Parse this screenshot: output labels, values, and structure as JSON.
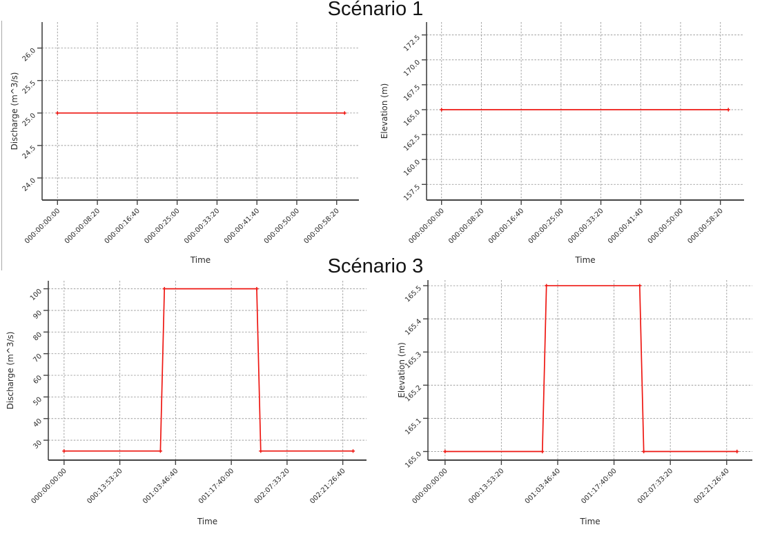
{
  "page": {
    "background": "#ffffff"
  },
  "artifact": {
    "note": "edge of adjacent cropped plot at far left"
  },
  "chart_data": [
    {
      "name": "scenario1-discharge",
      "figure_title": "Scénario 1",
      "type": "line",
      "xlabel": "Time",
      "ylabel": "Discharge (m^3/s)",
      "line_color": "#ee1611",
      "grid": "dashed",
      "grid_color": "#9c9c9c",
      "spine_color": "#424242",
      "text_color": "#2b2b2b",
      "x": [
        0,
        3600
      ],
      "y": [
        25.0,
        25.0
      ],
      "xlim": [
        -193,
        3779
      ],
      "ylim": [
        23.66,
        26.4
      ],
      "xtick_values": [
        0,
        500,
        1000,
        1500,
        2000,
        2500,
        3000,
        3500
      ],
      "xtick_labels": [
        "000:00:00:00",
        "000:00:08:20",
        "000:00:16:40",
        "000:00:25:00",
        "000:00:33:20",
        "000:00:41:40",
        "000:00:50:00",
        "000:00:58:20"
      ],
      "ytick_values": [
        24.0,
        24.5,
        25.0,
        25.5,
        26.0
      ],
      "ytick_labels": [
        "24.0",
        "24.5",
        "25.0",
        "25.5",
        "26.0"
      ]
    },
    {
      "name": "scenario1-elevation",
      "figure_title": "Scénario 1",
      "type": "line",
      "xlabel": "Time",
      "ylabel": "Elevation (m)",
      "line_color": "#ee1611",
      "grid": "dashed",
      "grid_color": "#9c9c9c",
      "spine_color": "#424242",
      "text_color": "#2b2b2b",
      "x": [
        0,
        3600
      ],
      "y": [
        165.0,
        165.0
      ],
      "xlim": [
        -188,
        3797
      ],
      "ylim": [
        155.93,
        173.79
      ],
      "xtick_values": [
        0,
        500,
        1000,
        1500,
        2000,
        2500,
        3000,
        3500
      ],
      "xtick_labels": [
        "000:00:00:00",
        "000:00:08:20",
        "000:00:16:40",
        "000:00:25:00",
        "000:00:33:20",
        "000:00:41:40",
        "000:00:50:00",
        "000:00:58:20"
      ],
      "ytick_values": [
        157.5,
        160.0,
        162.5,
        165.0,
        167.5,
        170.0,
        172.5
      ],
      "ytick_labels": [
        "157.5",
        "160.0",
        "162.5",
        "165.0",
        "167.5",
        "170.0",
        "172.5"
      ]
    },
    {
      "name": "scenario3-discharge",
      "figure_title": "Scénario 3",
      "type": "line",
      "xlabel": "Time",
      "ylabel": "Discharge (m^3/s)",
      "line_color": "#ee1611",
      "grid": "dashed",
      "grid_color": "#9c9c9c",
      "spine_color": "#424242",
      "text_color": "#2b2b2b",
      "x": [
        0,
        86400,
        90000,
        172800,
        176400,
        259200
      ],
      "y": [
        25,
        25,
        100,
        100,
        25,
        25
      ],
      "xlim": [
        -14130,
        271260
      ],
      "ylim": [
        20.8,
        103.7
      ],
      "xtick_values": [
        0,
        50000,
        100000,
        150000,
        200000,
        250000
      ],
      "xtick_labels": [
        "000:00:00:00",
        "000:13:53:20",
        "001:03:46:40",
        "001:17:40:00",
        "002:07:33:20",
        "002:21:26:40"
      ],
      "ytick_values": [
        30,
        40,
        50,
        60,
        70,
        80,
        90,
        100
      ],
      "ytick_labels": [
        "30",
        "40",
        "50",
        "60",
        "70",
        "80",
        "90",
        "100"
      ]
    },
    {
      "name": "scenario3-elevation",
      "figure_title": "Scénario 3",
      "type": "line",
      "xlabel": "Time",
      "ylabel": "Elevation (m)",
      "line_color": "#ee1611",
      "grid": "dashed",
      "grid_color": "#9c9c9c",
      "spine_color": "#424242",
      "text_color": "#2b2b2b",
      "x": [
        0,
        86400,
        90000,
        172800,
        176400,
        259200
      ],
      "y": [
        165.0,
        165.0,
        165.5,
        165.5,
        165.0,
        165.0
      ],
      "xlim": [
        -15200,
        272800
      ],
      "ylim": [
        164.974,
        165.517
      ],
      "xtick_values": [
        0,
        50000,
        100000,
        150000,
        200000,
        250000
      ],
      "xtick_labels": [
        "000:00:00:00",
        "000:13:53:20",
        "001:03:46:40",
        "001:17:40:00",
        "002:07:33:20",
        "002:21:26:40"
      ],
      "ytick_values": [
        165.0,
        165.1,
        165.2,
        165.3,
        165.4,
        165.5
      ],
      "ytick_labels": [
        "165.0",
        "165.1",
        "165.2",
        "165.3",
        "165.4",
        "165.5"
      ]
    }
  ]
}
